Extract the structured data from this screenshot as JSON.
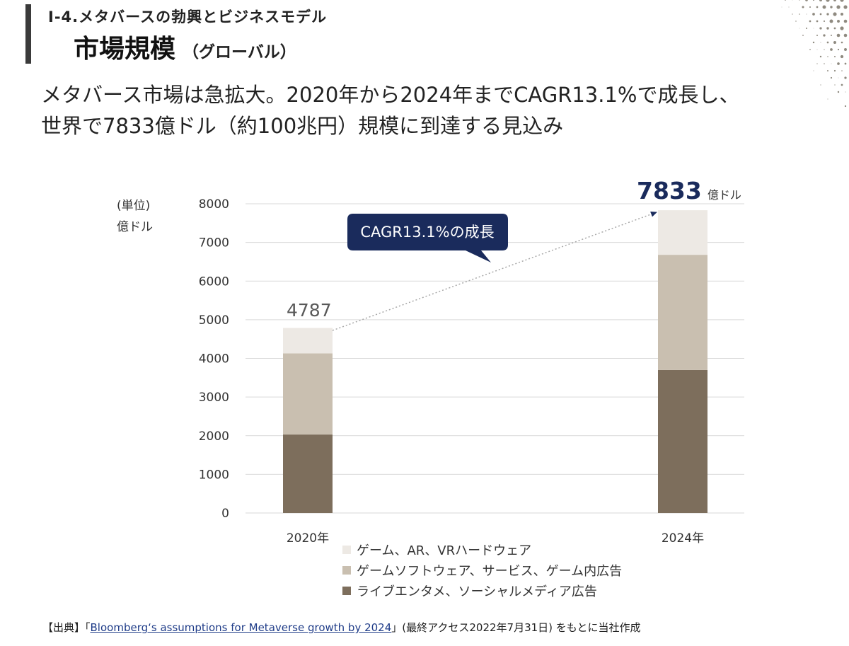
{
  "header": {
    "section_label": "I-4.メタバースの勃興とビジネスモデル",
    "title": "市場規模",
    "title_sub": "（グローバル）"
  },
  "headline": {
    "line1": "メタバース市場は急拡大。2020年から2024年までCAGR13.1%で成長し、",
    "line2": "世界で7833億ドル（約100兆円）規模に到達する見込み"
  },
  "chart_data": {
    "type": "bar",
    "stacked": true,
    "unit_label": [
      "(単位)",
      "億ドル"
    ],
    "categories": [
      "2020年",
      "2024年"
    ],
    "series": [
      {
        "name": "ライブエンタメ、ソーシャルメディア広告",
        "values": [
          2030,
          3700
        ],
        "color": "#7d6e5c"
      },
      {
        "name": "ゲームソフトウェア、サービス、ゲーム内広告",
        "values": [
          2100,
          2980
        ],
        "color": "#c9bfb0"
      },
      {
        "name": "ゲーム、AR、VRハードウェア",
        "values": [
          657,
          1153
        ],
        "color": "#ede9e4"
      }
    ],
    "totals": [
      4787,
      7833
    ],
    "total_labels": [
      "4787",
      "7833"
    ],
    "total_unit": "億ドル",
    "ylim": [
      0,
      8000
    ],
    "yticks": [
      0,
      1000,
      2000,
      3000,
      4000,
      5000,
      6000,
      7000,
      8000
    ],
    "grid": true,
    "annotation": "CAGR13.1%の成長",
    "legend_position": "bottom"
  },
  "colors": {
    "accent_navy": "#1a2b5c",
    "header_bar": "#3a3a3a"
  },
  "source": {
    "prefix": "【出典】「",
    "link_text": "Bloomberg‘s assumptions for Metaverse growth by 2024",
    "suffix": "」(最終アクセス2022年7月31日) をもとに当社作成"
  }
}
